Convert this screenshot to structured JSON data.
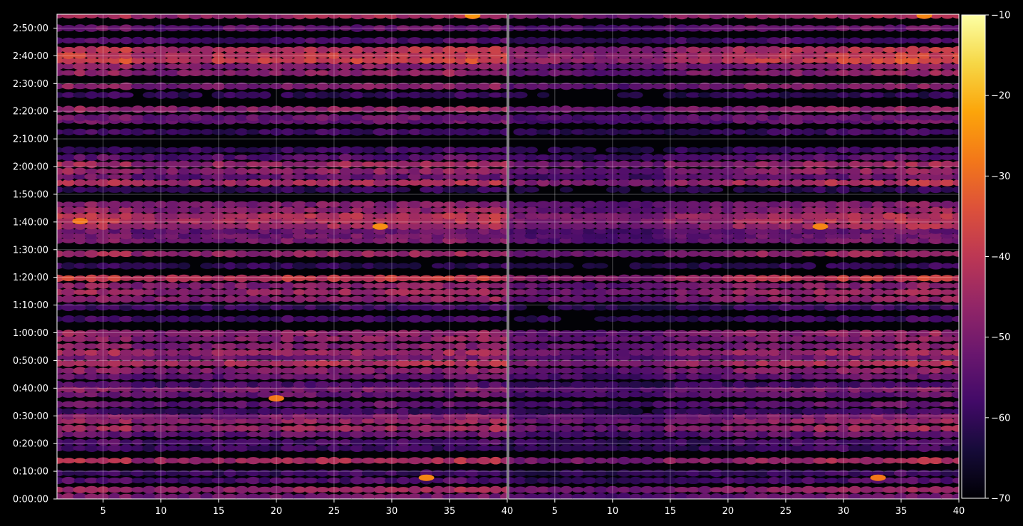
{
  "chart_data": {
    "type": "heatmap",
    "panels": [
      {
        "x_range": [
          1,
          40
        ],
        "x_ticks": [
          5,
          10,
          15,
          20,
          25,
          30,
          35,
          40
        ],
        "region_intensity": [
          1.0,
          0.85,
          0.9,
          0.95,
          0.95,
          1.0
        ]
      },
      {
        "x_range": [
          1,
          40
        ],
        "x_ticks": [
          5,
          10,
          15,
          20,
          25,
          30,
          35,
          40
        ],
        "region_intensity": [
          0.7,
          0.65,
          0.8,
          0.9,
          0.95,
          1.0
        ]
      }
    ],
    "y_range_seconds": [
      0,
      10500
    ],
    "y_tick_labels": [
      "0:00:00",
      "0:10:00",
      "0:20:00",
      "0:30:00",
      "0:40:00",
      "0:50:00",
      "1:00:00",
      "1:10:00",
      "1:20:00",
      "1:30:00",
      "1:40:00",
      "1:50:00",
      "2:00:00",
      "2:10:00",
      "2:20:00",
      "2:30:00",
      "2:40:00",
      "2:50:00"
    ],
    "y_tick_seconds": [
      0,
      600,
      1200,
      1800,
      2400,
      3000,
      3600,
      4200,
      4800,
      5400,
      6000,
      6600,
      7200,
      7800,
      8400,
      9000,
      9600,
      10200
    ],
    "colorbar": {
      "colormap": "inferno",
      "min": -70,
      "max": -10,
      "ticks": [
        -10,
        -20,
        -30,
        -40,
        -50,
        -60,
        -70
      ],
      "tick_labels": [
        "−10",
        "−20",
        "−30",
        "−40",
        "−50",
        "−60",
        "−70"
      ]
    },
    "bands": [
      {
        "t": 50,
        "v": -50
      },
      {
        "t": 200,
        "v": -44
      },
      {
        "t": 400,
        "v": -56
      },
      {
        "t": 560,
        "v": -58
      },
      {
        "t": 830,
        "v": -42
      },
      {
        "t": 1100,
        "v": -58
      },
      {
        "t": 1230,
        "v": -56
      },
      {
        "t": 1400,
        "v": -52
      },
      {
        "t": 1530,
        "v": -44
      },
      {
        "t": 1690,
        "v": -45
      },
      {
        "t": 1790,
        "v": -48
      },
      {
        "t": 1900,
        "v": -58
      },
      {
        "t": 2050,
        "v": -52
      },
      {
        "t": 2260,
        "v": -52
      },
      {
        "t": 2380,
        "v": -48
      },
      {
        "t": 2480,
        "v": -56
      },
      {
        "t": 2650,
        "v": -52
      },
      {
        "t": 2780,
        "v": -47
      },
      {
        "t": 2940,
        "v": -41
      },
      {
        "t": 3070,
        "v": -50
      },
      {
        "t": 3170,
        "v": -44
      },
      {
        "t": 3310,
        "v": -48
      },
      {
        "t": 3470,
        "v": -47
      },
      {
        "t": 3590,
        "v": -46
      },
      {
        "t": 3900,
        "v": -58
      },
      {
        "t": 4150,
        "v": -58
      },
      {
        "t": 4330,
        "v": -46
      },
      {
        "t": 4480,
        "v": -44
      },
      {
        "t": 4620,
        "v": -47
      },
      {
        "t": 4780,
        "v": -38
      },
      {
        "t": 5050,
        "v": -60
      },
      {
        "t": 5310,
        "v": -44
      },
      {
        "t": 5600,
        "v": -49
      },
      {
        "t": 5700,
        "v": -50
      },
      {
        "t": 5800,
        "v": -52
      },
      {
        "t": 5910,
        "v": -43
      },
      {
        "t": 6030,
        "v": -40
      },
      {
        "t": 6130,
        "v": -41
      },
      {
        "t": 6260,
        "v": -46
      },
      {
        "t": 6380,
        "v": -48
      },
      {
        "t": 6700,
        "v": -60
      },
      {
        "t": 6850,
        "v": -41
      },
      {
        "t": 6980,
        "v": -52
      },
      {
        "t": 7100,
        "v": -46
      },
      {
        "t": 7250,
        "v": -44
      },
      {
        "t": 7400,
        "v": -54
      },
      {
        "t": 7560,
        "v": -58
      },
      {
        "t": 7950,
        "v": -58
      },
      {
        "t": 8190,
        "v": -52
      },
      {
        "t": 8260,
        "v": -51
      },
      {
        "t": 8440,
        "v": -46
      },
      {
        "t": 8750,
        "v": -60
      },
      {
        "t": 8940,
        "v": -48
      },
      {
        "t": 9230,
        "v": -46
      },
      {
        "t": 9370,
        "v": -47
      },
      {
        "t": 9500,
        "v": -36
      },
      {
        "t": 9610,
        "v": -38
      },
      {
        "t": 9730,
        "v": -40
      },
      {
        "t": 9930,
        "v": -56
      },
      {
        "t": 10200,
        "v": -52
      },
      {
        "t": 10470,
        "v": -42
      }
    ],
    "hotspots": [
      {
        "panel": 0,
        "x": 29,
        "t": 5900,
        "v": -25
      },
      {
        "panel": 0,
        "x": 33,
        "t": 460,
        "v": -26
      },
      {
        "panel": 0,
        "x": 20,
        "t": 2180,
        "v": -28
      },
      {
        "panel": 0,
        "x": 37,
        "t": 10470,
        "v": -24
      },
      {
        "panel": 0,
        "x": 3,
        "t": 6020,
        "v": -28
      },
      {
        "panel": 1,
        "x": 28,
        "t": 5900,
        "v": -26
      },
      {
        "panel": 1,
        "x": 33,
        "t": 460,
        "v": -28
      },
      {
        "panel": 1,
        "x": 37,
        "t": 10470,
        "v": -26
      }
    ]
  }
}
